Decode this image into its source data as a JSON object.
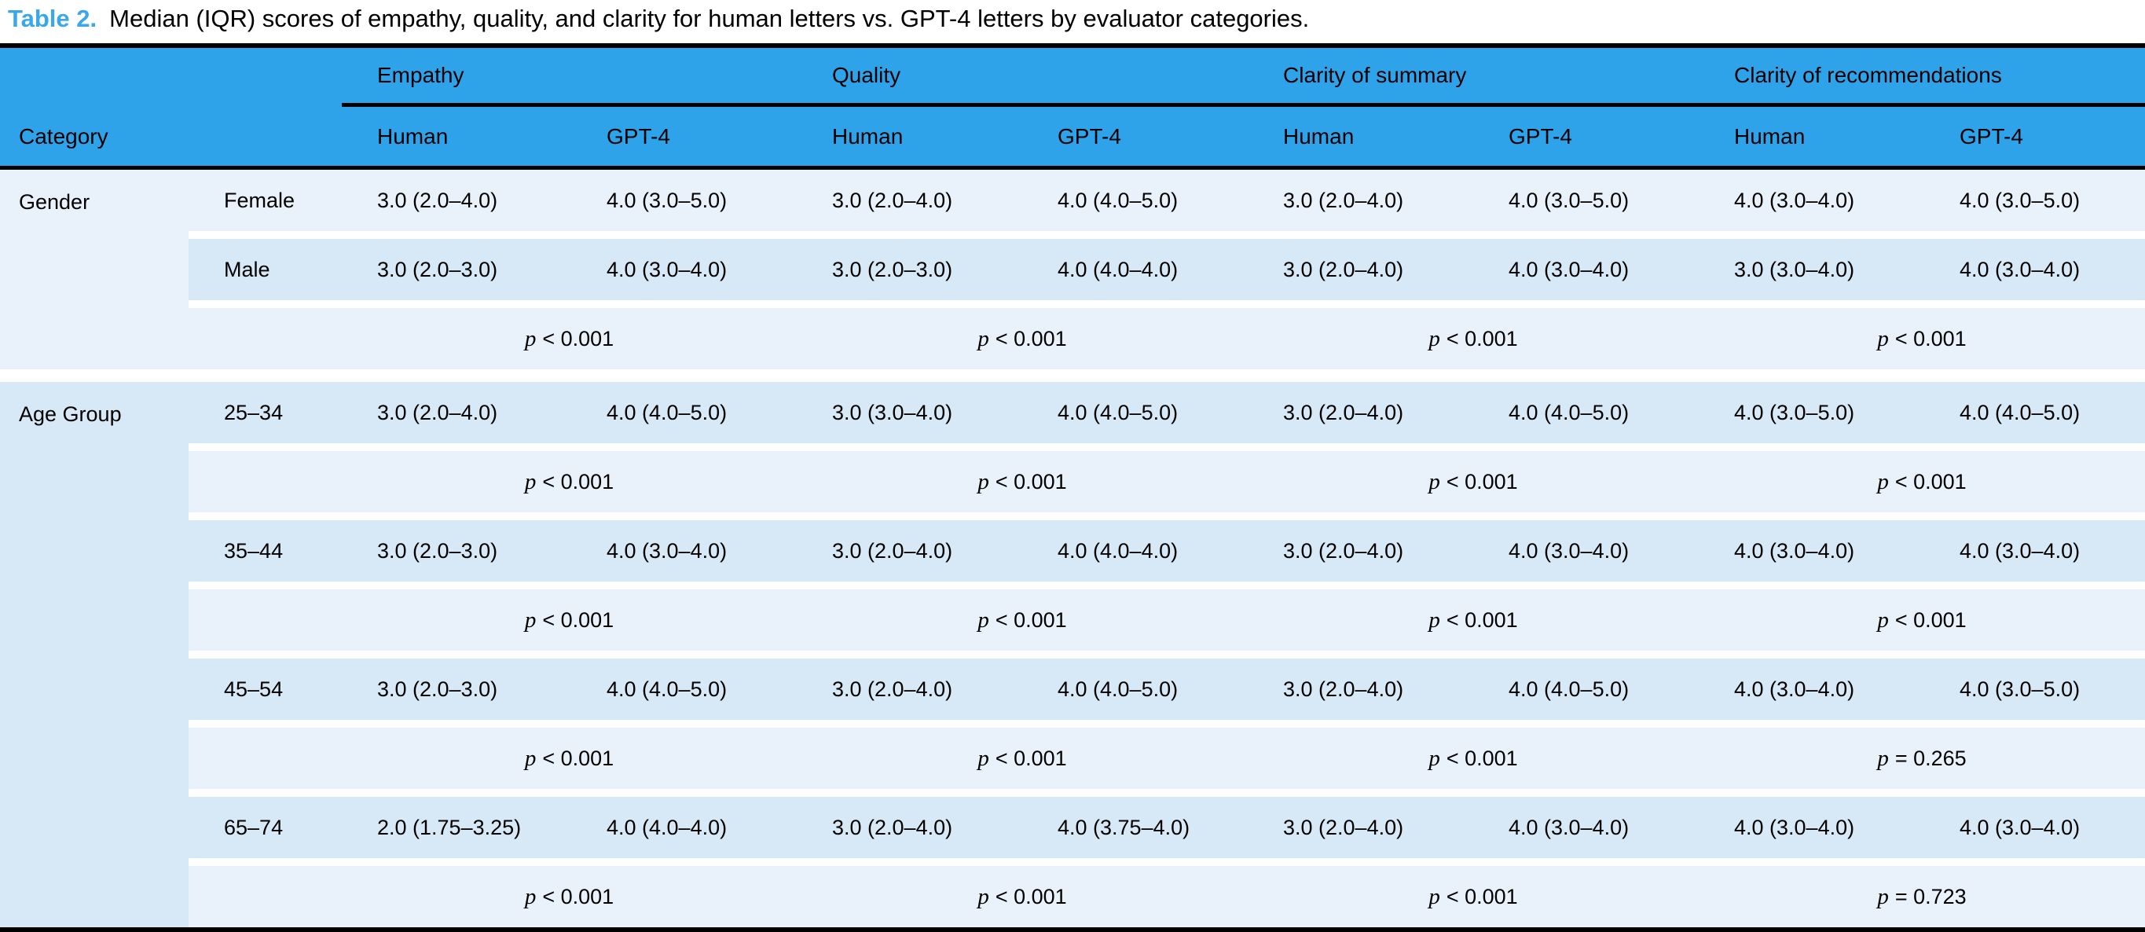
{
  "title": {
    "label": "Table 2.",
    "text": "Median (IQR) scores of empathy, quality, and clarity for human letters vs. GPT-4 letters by evaluator categories."
  },
  "colors": {
    "header_bg": "#2fa3ea",
    "row_light": "#e9f2fb",
    "row_dark": "#d7e8f6",
    "accent_blue": "#3aa7e9",
    "rule_black": "#000000"
  },
  "table": {
    "category_header": "Category",
    "p_symbol": "p",
    "groups": [
      {
        "label": "Empathy"
      },
      {
        "label": "Quality"
      },
      {
        "label": "Clarity of summary"
      },
      {
        "label": "Clarity of recommendations"
      }
    ],
    "sub_headers": [
      "Human",
      "GPT-4"
    ],
    "categories": [
      {
        "label": "Gender",
        "rows": [
          {
            "type": "data",
            "label": "Female",
            "values": [
              "3.0 (2.0–4.0)",
              "4.0 (3.0–5.0)",
              "3.0 (2.0–4.0)",
              "4.0 (4.0–5.0)",
              "3.0 (2.0–4.0)",
              "4.0 (3.0–5.0)",
              "4.0 (3.0–4.0)",
              "4.0 (3.0–5.0)"
            ]
          },
          {
            "type": "data",
            "label": "Male",
            "values": [
              "3.0 (2.0–3.0)",
              "4.0 (3.0–4.0)",
              "3.0 (2.0–3.0)",
              "4.0 (4.0–4.0)",
              "3.0 (2.0–4.0)",
              "4.0 (3.0–4.0)",
              "3.0 (3.0–4.0)",
              "4.0 (3.0–4.0)"
            ]
          },
          {
            "type": "p",
            "values": [
              "< 0.001",
              "< 0.001",
              "< 0.001",
              "< 0.001"
            ]
          }
        ]
      },
      {
        "label": "Age Group",
        "rows": [
          {
            "type": "data",
            "label": "25–34",
            "values": [
              "3.0 (2.0–4.0)",
              "4.0 (4.0–5.0)",
              "3.0 (3.0–4.0)",
              "4.0 (4.0–5.0)",
              "3.0 (2.0–4.0)",
              "4.0 (4.0–5.0)",
              "4.0 (3.0–5.0)",
              "4.0 (4.0–5.0)"
            ]
          },
          {
            "type": "p",
            "values": [
              "< 0.001",
              "< 0.001",
              "< 0.001",
              "< 0.001"
            ]
          },
          {
            "type": "data",
            "label": "35–44",
            "values": [
              "3.0 (2.0–3.0)",
              "4.0 (3.0–4.0)",
              "3.0 (2.0–4.0)",
              "4.0 (4.0–4.0)",
              "3.0 (2.0–4.0)",
              "4.0 (3.0–4.0)",
              "4.0 (3.0–4.0)",
              "4.0 (3.0–4.0)"
            ]
          },
          {
            "type": "p",
            "values": [
              "< 0.001",
              "< 0.001",
              "< 0.001",
              "< 0.001"
            ]
          },
          {
            "type": "data",
            "label": "45–54",
            "values": [
              "3.0 (2.0–3.0)",
              "4.0 (4.0–5.0)",
              "3.0 (2.0–4.0)",
              "4.0 (4.0–5.0)",
              "3.0 (2.0–4.0)",
              "4.0 (4.0–5.0)",
              "4.0 (3.0–4.0)",
              "4.0 (3.0–5.0)"
            ]
          },
          {
            "type": "p",
            "values": [
              "< 0.001",
              "< 0.001",
              "< 0.001",
              "= 0.265"
            ]
          },
          {
            "type": "data",
            "label": "65–74",
            "values": [
              "2.0 (1.75–3.25)",
              "4.0 (4.0–4.0)",
              "3.0 (2.0–4.0)",
              "4.0 (3.75–4.0)",
              "3.0 (2.0–4.0)",
              "4.0 (3.0–4.0)",
              "4.0 (3.0–4.0)",
              "4.0 (3.0–4.0)"
            ]
          },
          {
            "type": "p",
            "values": [
              "< 0.001",
              "< 0.001",
              "< 0.001",
              "= 0.723"
            ]
          }
        ]
      }
    ]
  }
}
